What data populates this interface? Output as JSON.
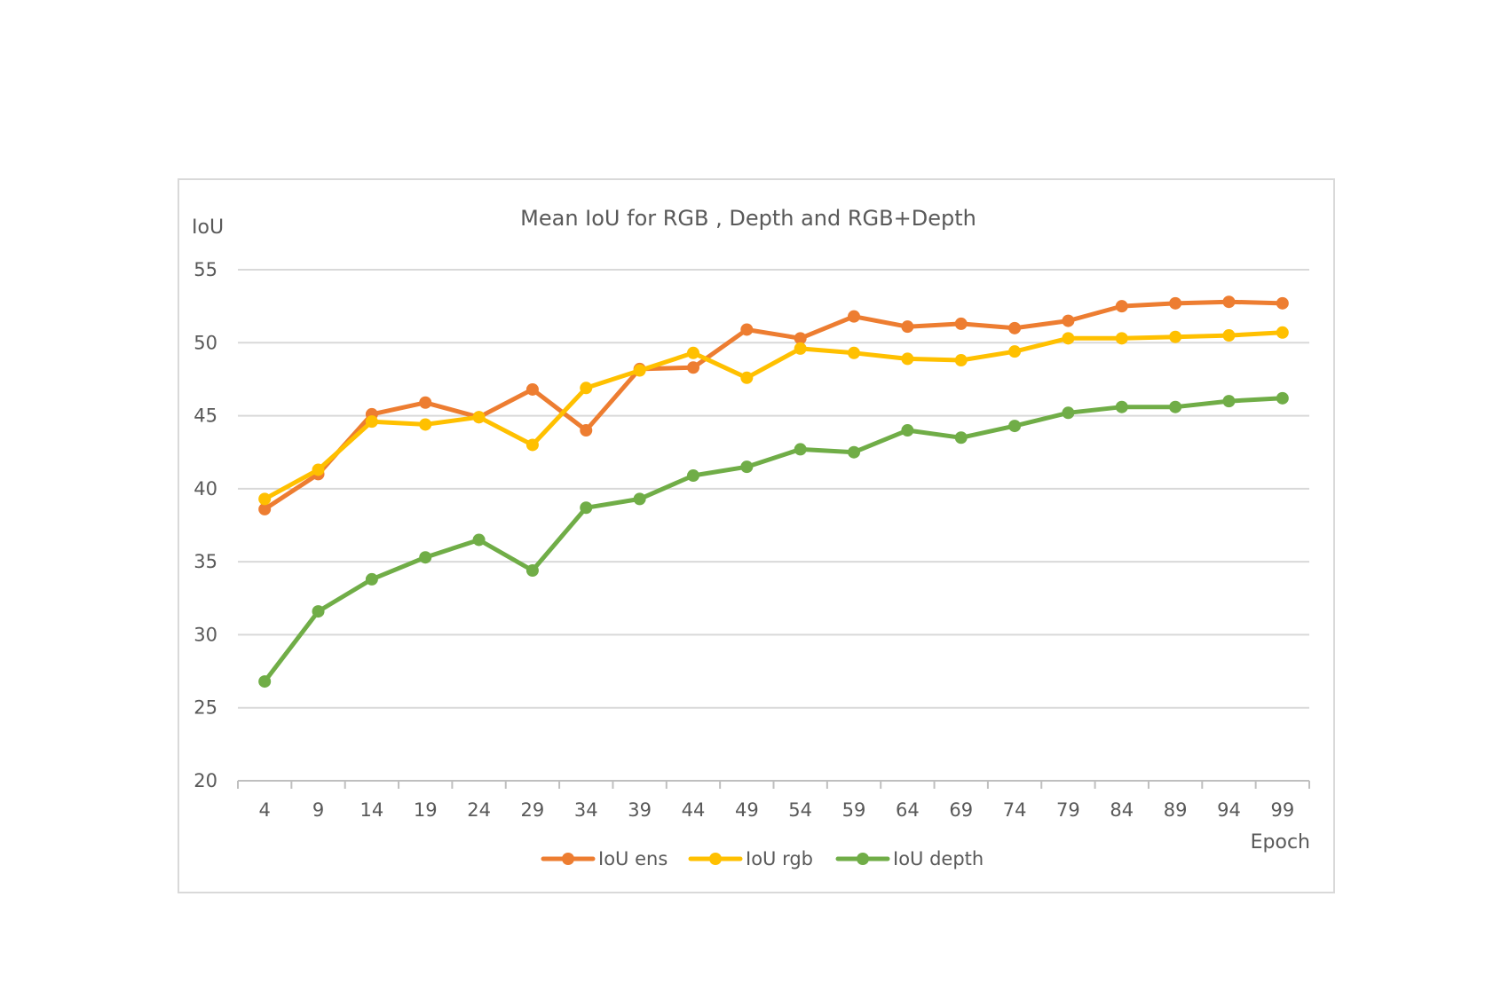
{
  "chart_data": {
    "type": "line",
    "title": "Mean IoU for RGB , Depth and RGB+Depth",
    "xlabel": "Epoch",
    "ylabel": "IoU",
    "categories": [
      "4",
      "9",
      "14",
      "19",
      "24",
      "29",
      "34",
      "39",
      "44",
      "49",
      "54",
      "59",
      "64",
      "69",
      "74",
      "79",
      "84",
      "89",
      "94",
      "99"
    ],
    "ylim": [
      20,
      55
    ],
    "yticks": [
      20,
      25,
      30,
      35,
      40,
      45,
      50,
      55
    ],
    "grid": true,
    "legend_position": "bottom",
    "series": [
      {
        "name": "IoU ens",
        "color": "#ed7d31",
        "values": [
          38.6,
          41.0,
          45.1,
          45.9,
          44.9,
          46.8,
          44.0,
          48.2,
          48.3,
          50.9,
          50.3,
          51.8,
          51.1,
          51.3,
          51.0,
          51.5,
          52.5,
          52.7,
          52.8,
          52.7
        ]
      },
      {
        "name": "IoU rgb",
        "color": "#ffc000",
        "values": [
          39.3,
          41.3,
          44.6,
          44.4,
          44.9,
          43.0,
          46.9,
          48.1,
          49.3,
          47.6,
          49.6,
          49.3,
          48.9,
          48.8,
          49.4,
          50.3,
          50.3,
          50.4,
          50.5,
          50.7
        ]
      },
      {
        "name": "IoU depth",
        "color": "#70ad47",
        "values": [
          26.8,
          31.6,
          33.8,
          35.3,
          36.5,
          34.4,
          38.7,
          39.3,
          40.9,
          41.5,
          42.7,
          42.5,
          44.0,
          43.5,
          44.3,
          45.2,
          45.6,
          45.6,
          46.0,
          46.2
        ]
      }
    ]
  }
}
